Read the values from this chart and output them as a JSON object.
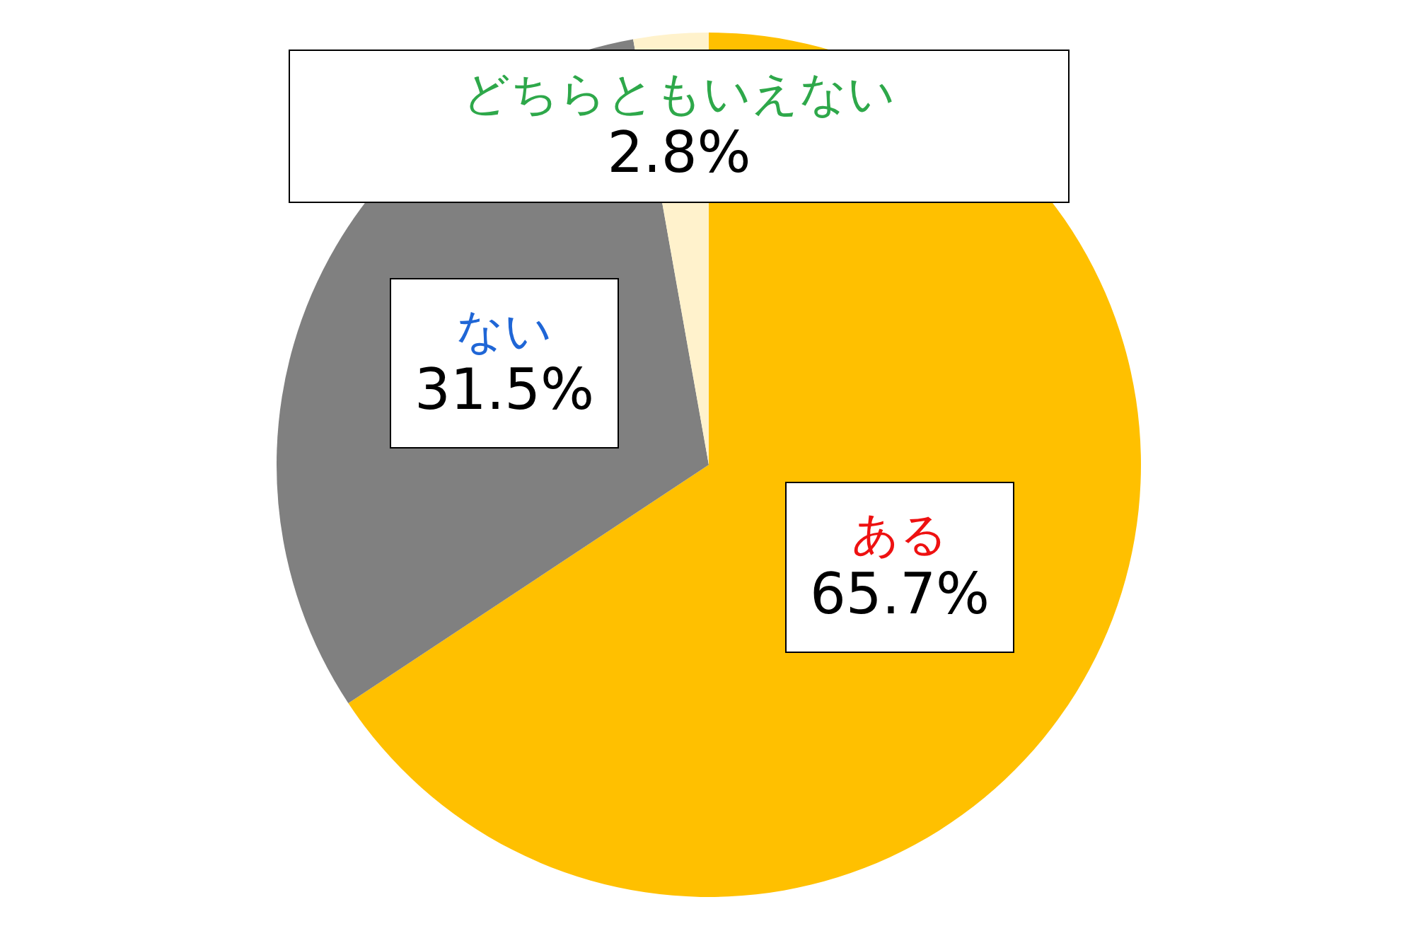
{
  "chart_data": {
    "type": "pie",
    "categories": [
      "ある",
      "ない",
      "どちらともいえない"
    ],
    "values": [
      65.7,
      31.5,
      2.8
    ],
    "colors": [
      "#ffc000",
      "#808080",
      "#fff2cc"
    ],
    "value_labels": [
      "65.7%",
      "31.5%",
      "2.8%"
    ],
    "legend": false
  }
}
